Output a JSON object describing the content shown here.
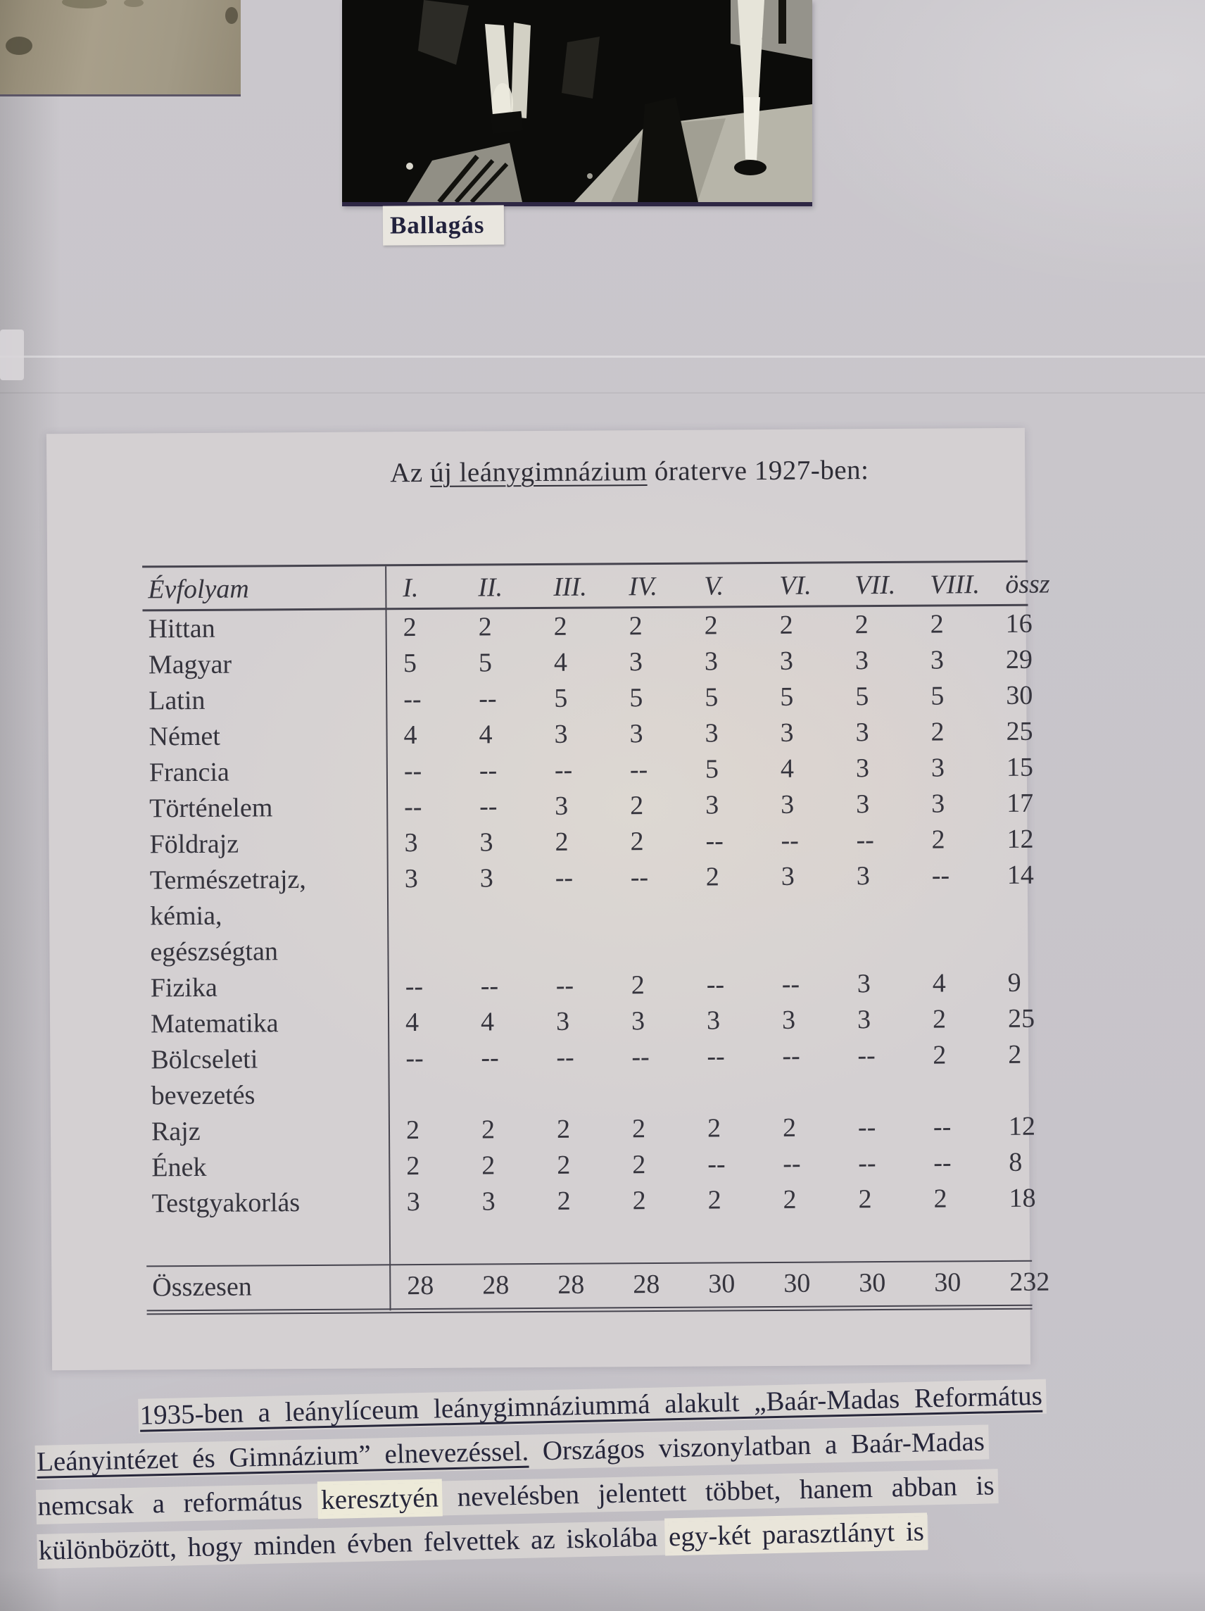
{
  "photo_caption": "Ballagás",
  "title": {
    "pre": "Az ",
    "underlined": "új leánygimnázium",
    "post": " óraterve 1927-ben:"
  },
  "table": {
    "header": {
      "label": "Évfolyam",
      "cols": [
        "I.",
        "II.",
        "III.",
        "IV.",
        "V.",
        "VI.",
        "VII.",
        "VIII.",
        "össz"
      ]
    },
    "rows": [
      {
        "subject": "Hittan",
        "values": [
          "2",
          "2",
          "2",
          "2",
          "2",
          "2",
          "2",
          "2",
          "16"
        ]
      },
      {
        "subject": "Magyar",
        "values": [
          "5",
          "5",
          "4",
          "3",
          "3",
          "3",
          "3",
          "3",
          "29"
        ]
      },
      {
        "subject": "Latin",
        "values": [
          "--",
          "--",
          "5",
          "5",
          "5",
          "5",
          "5",
          "5",
          "30"
        ]
      },
      {
        "subject": "Német",
        "values": [
          "4",
          "4",
          "3",
          "3",
          "3",
          "3",
          "3",
          "2",
          "25"
        ]
      },
      {
        "subject": "Francia",
        "values": [
          "--",
          "--",
          "--",
          "--",
          "5",
          "4",
          "3",
          "3",
          "15"
        ]
      },
      {
        "subject": "Történelem",
        "values": [
          "--",
          "--",
          "3",
          "2",
          "3",
          "3",
          "3",
          "3",
          "17"
        ]
      },
      {
        "subject": "Földrajz",
        "values": [
          "3",
          "3",
          "2",
          "2",
          "--",
          "--",
          "--",
          "2",
          "12"
        ]
      },
      {
        "subject": "Természetrajz,\nkémia,\negészségtan",
        "values": [
          "3",
          "3",
          "--",
          "--",
          "2",
          "3",
          "3",
          "--",
          "14"
        ]
      },
      {
        "subject": "Fizika",
        "values": [
          "--",
          "--",
          "--",
          "2",
          "--",
          "--",
          "3",
          "4",
          "9"
        ]
      },
      {
        "subject": "Matematika",
        "values": [
          "4",
          "4",
          "3",
          "3",
          "3",
          "3",
          "3",
          "2",
          "25"
        ]
      },
      {
        "subject": "Bölcseleti\nbevezetés",
        "values": [
          "--",
          "--",
          "--",
          "--",
          "--",
          "--",
          "--",
          "2",
          "2"
        ]
      },
      {
        "subject": "Rajz",
        "values": [
          "2",
          "2",
          "2",
          "2",
          "2",
          "2",
          "--",
          "--",
          "12"
        ]
      },
      {
        "subject": "Ének",
        "values": [
          "2",
          "2",
          "2",
          "2",
          "--",
          "--",
          "--",
          "--",
          "8"
        ]
      },
      {
        "subject": "Testgyakorlás",
        "values": [
          "3",
          "3",
          "2",
          "2",
          "2",
          "2",
          "2",
          "2",
          "18"
        ]
      }
    ],
    "total": {
      "subject": "Összesen",
      "values": [
        "28",
        "28",
        "28",
        "28",
        "30",
        "30",
        "30",
        "30",
        "232"
      ]
    }
  },
  "paragraph": {
    "line1": "1935-ben a leánylíceum leánygimnáziummá alakult „Baár-Madas Református",
    "line2_underlined": "Leányintézet és Gimnázium” elnevezéssel.",
    "line2_rest": " Országos viszonylatban a Baár-Madas",
    "line3_a": "nemcsak a református ",
    "line3_highlight": "keresztyén",
    "line3_b": " nevelésben jelentett többet, hanem abban is",
    "line4_a": "különbözött, hogy minden évben felvettek az iskolába ",
    "line4_highlight": "egy-két parasztlányt is"
  },
  "colors": {
    "page": "#cac7cc",
    "sheet": "#d8d4d2",
    "ink_table": "#35343d",
    "ink_paragraph": "#26263a",
    "photo_border": "#2e2744"
  }
}
